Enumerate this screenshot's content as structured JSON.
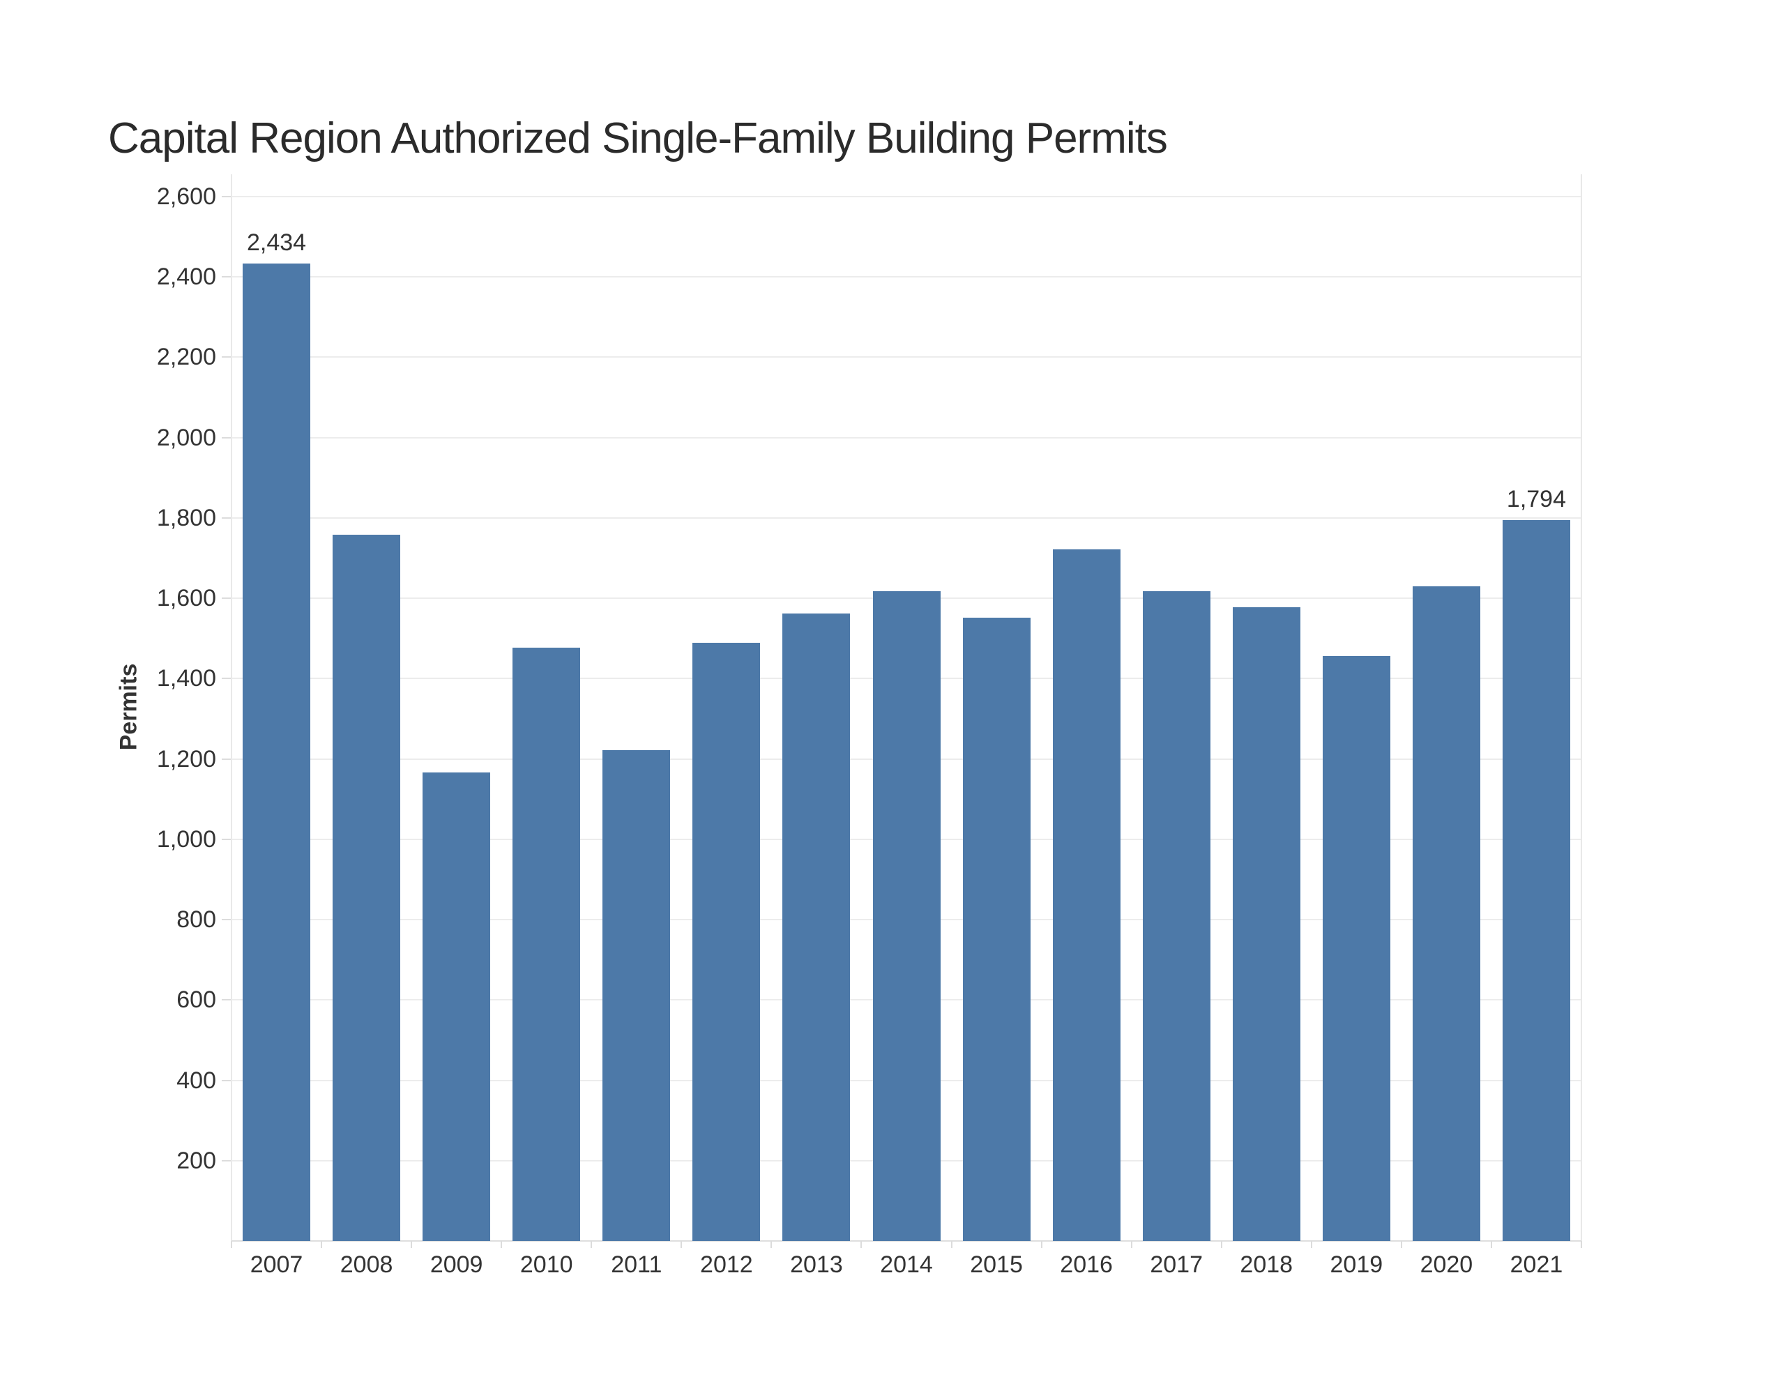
{
  "page": {
    "background_color": "#ffffff"
  },
  "chart_data": {
    "type": "bar",
    "title": "Capital Region Authorized Single-Family Building Permits",
    "xlabel": "",
    "ylabel": "Permits",
    "categories": [
      "2007",
      "2008",
      "2009",
      "2010",
      "2011",
      "2012",
      "2013",
      "2014",
      "2015",
      "2016",
      "2017",
      "2018",
      "2019",
      "2020",
      "2021"
    ],
    "values": [
      2434,
      1758,
      1166,
      1477,
      1222,
      1490,
      1562,
      1618,
      1552,
      1722,
      1618,
      1578,
      1457,
      1630,
      1794
    ],
    "ylim": [
      0,
      2600
    ],
    "ytick_step": 200,
    "grid": true,
    "legend_position": "none",
    "value_labels": [
      {
        "category": "2007",
        "text": "2,434"
      },
      {
        "category": "2021",
        "text": "1,794"
      }
    ],
    "colors": {
      "bar": "#4d79a8",
      "title_text": "#2b2b2b",
      "axis_text": "#333333",
      "gridline": "#ececec",
      "axis_line": "#e9e9e9",
      "baseline": "#dedede",
      "tick_mark": "#dcdcdc"
    }
  }
}
